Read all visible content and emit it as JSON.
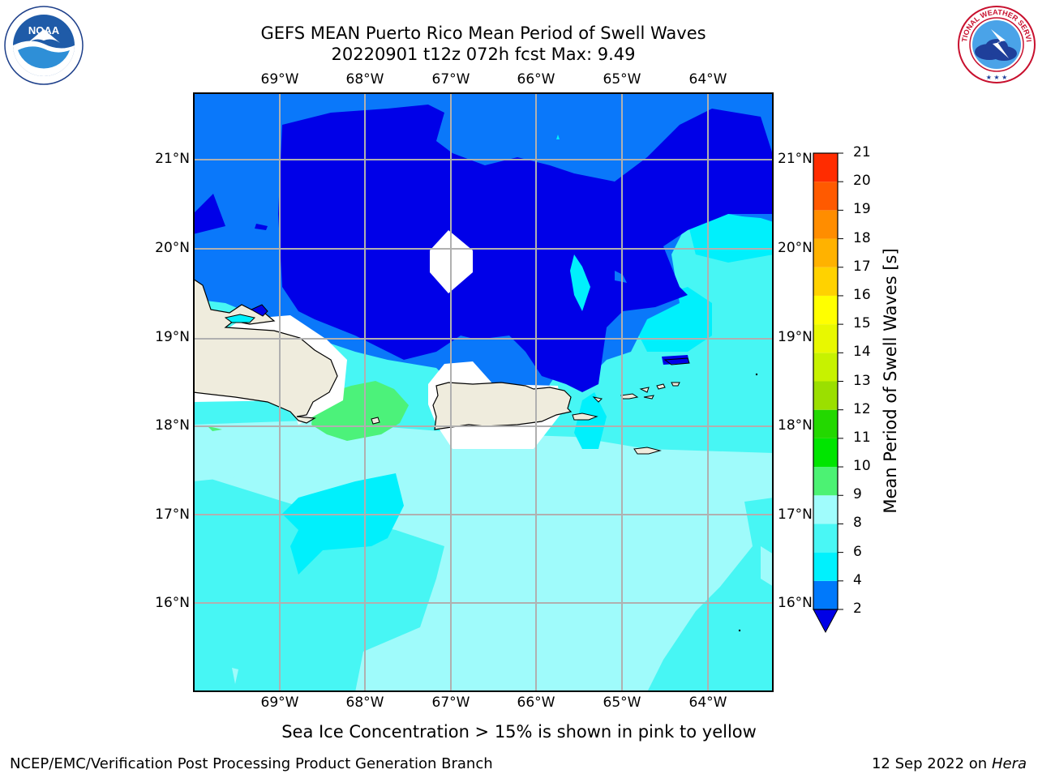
{
  "header": {
    "title_line1": "GEFS MEAN Puerto Rico Mean Period of Swell Waves",
    "title_line2": "20220901 t12z 072h fcst   Max: 9.49"
  },
  "logos": {
    "left": {
      "name": "noaa-logo",
      "text": "NOAA",
      "ring_text": "NATIONAL OCEANIC AND ATMOSPHERIC ADMINISTRATION · U.S. DEPARTMENT OF COMMERCE"
    },
    "right": {
      "name": "nws-logo",
      "ring_text": "NATIONAL WEATHER SERVICE"
    }
  },
  "map": {
    "lon_labels": [
      "69°W",
      "68°W",
      "67°W",
      "66°W",
      "65°W",
      "64°W"
    ],
    "lat_labels": [
      "21°N",
      "20°N",
      "19°N",
      "18°N",
      "17°N",
      "16°N"
    ],
    "colors": {
      "lt2": "#0000e8",
      "c2_4": "#0a78fa",
      "c4_6": "#00f0fc",
      "c6_8": "#47f6f4",
      "c8_9": "#9ffbfb",
      "c9_10": "#4cf27a",
      "land": "#efecdd",
      "nodata": "#ffffff",
      "grid": "#b0b0b0"
    }
  },
  "colorbar": {
    "label": "Mean Period of Swell Waves [s]",
    "ticks": [
      "2",
      "4",
      "6",
      "8",
      "9",
      "10",
      "11",
      "12",
      "13",
      "14",
      "15",
      "16",
      "17",
      "18",
      "19",
      "20",
      "21"
    ],
    "level_colors": [
      "#0079fb",
      "#00f1fd",
      "#49f7f5",
      "#a0fcfc",
      "#4cf273",
      "#00e500",
      "#23d800",
      "#9bdf00",
      "#c7f200",
      "#e8f800",
      "#ffff00",
      "#ffd200",
      "#ffb200",
      "#ff8d00",
      "#ff5a00",
      "#ff2c00"
    ],
    "extend_color": "#0000e6"
  },
  "note": "Sea Ice Concentration > 15% is shown in pink to yellow",
  "footer": {
    "left": "NCEP/EMC/Verification Post Processing Product Generation Branch",
    "right_date": "12 Sep 2022 on",
    "right_host": "Hera"
  }
}
